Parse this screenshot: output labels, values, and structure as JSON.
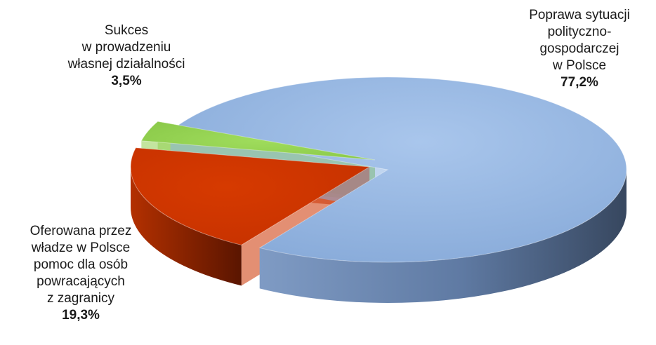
{
  "chart_data": {
    "type": "pie",
    "title": "",
    "categories": [
      "Poprawa sytuacji polityczno-gospodarczej w Polsce",
      "Oferowana przez władze w Polsce pomoc dla osób powracających z zagranicy",
      "Sukces w prowadzeniu własnej działalności"
    ],
    "values": [
      77.2,
      19.3,
      3.5
    ],
    "unit": "%",
    "exploded": true,
    "three_d": true,
    "colors": [
      "#8DB3E2",
      "#CC3300",
      "#92D050"
    ],
    "labels": [
      {
        "lines": [
          "Poprawa sytuacji",
          "polityczno-",
          "gospodarczej",
          "w Polsce"
        ],
        "pct": "77,2%"
      },
      {
        "lines": [
          "Oferowana przez",
          "władze w Polsce",
          "pomoc dla osób",
          "powracających",
          "z zagranicy"
        ],
        "pct": "19,3%"
      },
      {
        "lines": [
          "Sukces",
          "w prowadzeniu",
          "własnej działalności"
        ],
        "pct": "3,5%"
      }
    ]
  }
}
